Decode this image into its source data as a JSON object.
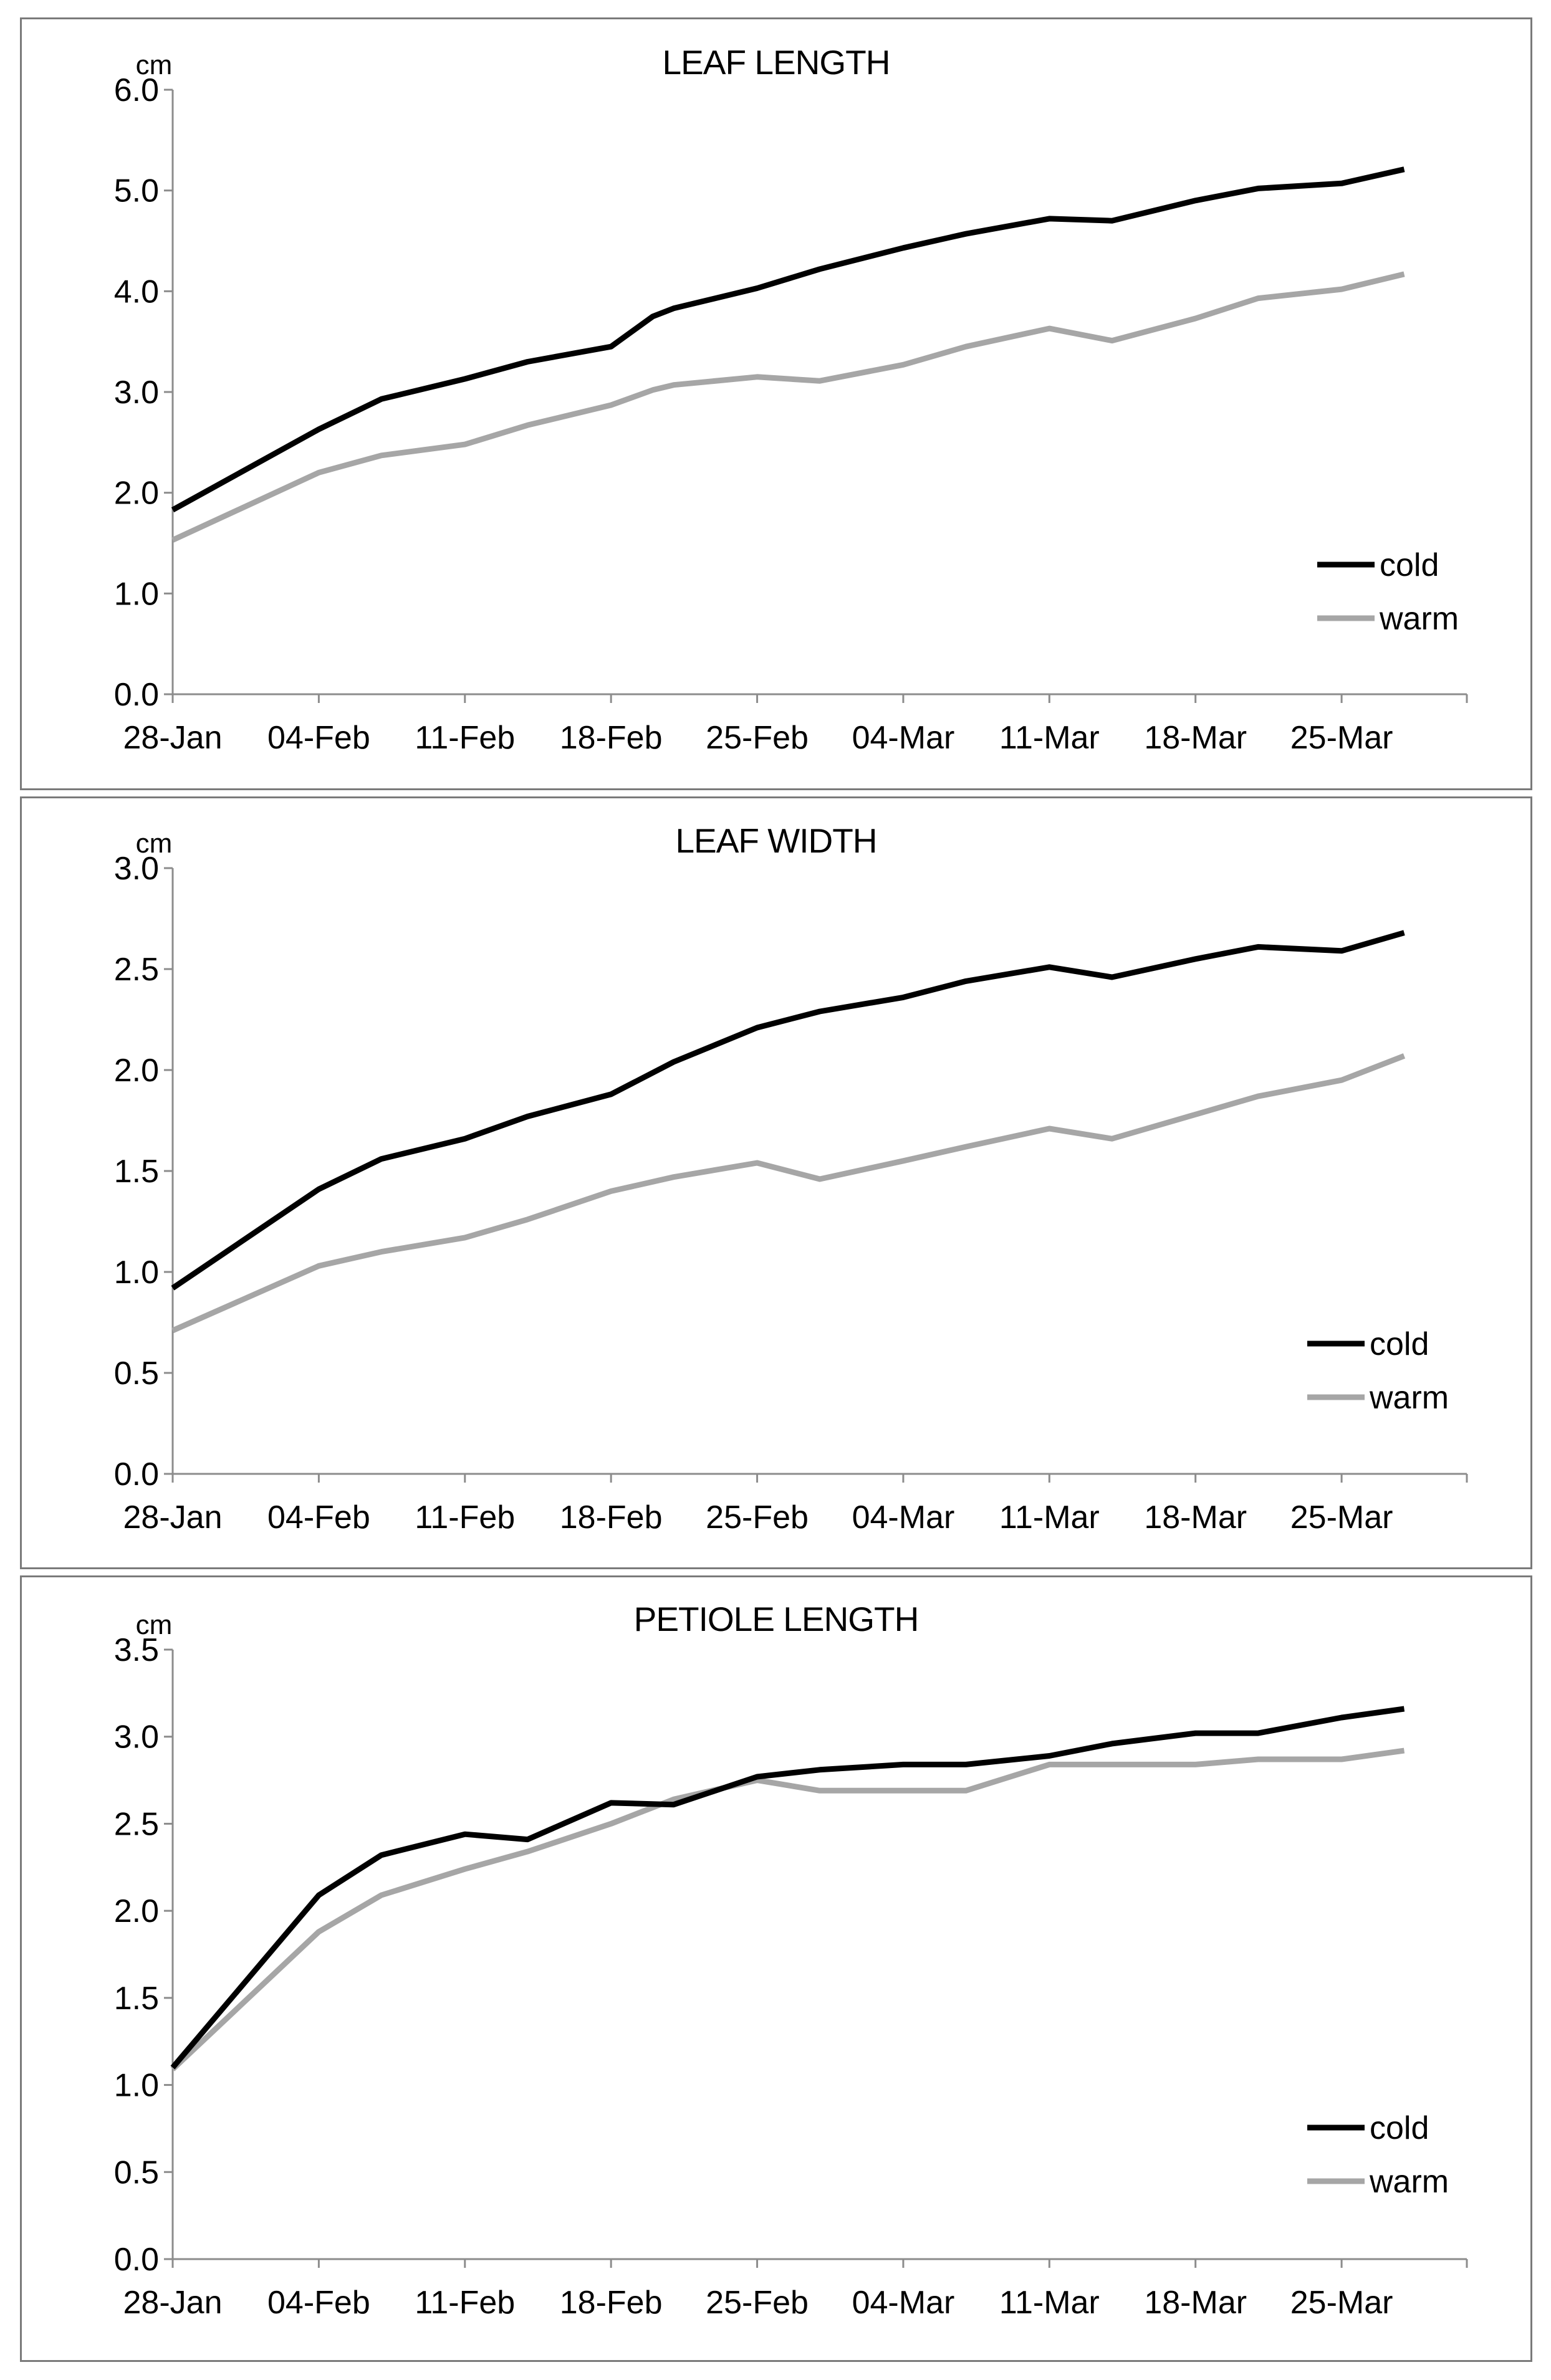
{
  "chart_data": [
    {
      "type": "line",
      "title": "LEAF LENGTH",
      "ylabel": "cm",
      "xlabel": "",
      "ylim": [
        0,
        6
      ],
      "yticks": [
        "0.0",
        "1.0",
        "2.0",
        "3.0",
        "4.0",
        "5.0",
        "6.0"
      ],
      "xticks": [
        "28-Jan",
        "04-Feb",
        "11-Feb",
        "18-Feb",
        "25-Feb",
        "04-Mar",
        "11-Mar",
        "18-Mar",
        "25-Mar"
      ],
      "x": [
        0,
        7,
        10,
        14,
        17,
        21,
        23,
        24,
        28,
        31,
        35,
        38,
        42,
        45,
        49,
        52,
        56,
        59
      ],
      "legend_position": "lower-right",
      "series": [
        {
          "name": "cold",
          "color": "#000000",
          "values": [
            1.83,
            2.63,
            2.93,
            3.13,
            3.3,
            3.45,
            3.75,
            3.83,
            4.03,
            4.22,
            4.43,
            4.57,
            4.72,
            4.7,
            4.9,
            5.02,
            5.07,
            5.21
          ]
        },
        {
          "name": "warm",
          "color": "#a6a6a6",
          "values": [
            1.53,
            2.2,
            2.37,
            2.48,
            2.67,
            2.87,
            3.02,
            3.07,
            3.15,
            3.11,
            3.27,
            3.45,
            3.63,
            3.51,
            3.73,
            3.93,
            4.02,
            4.17
          ]
        }
      ]
    },
    {
      "type": "line",
      "title": "LEAF WIDTH",
      "ylabel": "cm",
      "xlabel": "",
      "ylim": [
        0,
        3
      ],
      "yticks": [
        "0.0",
        "0.5",
        "1.0",
        "1.5",
        "2.0",
        "2.5",
        "3.0"
      ],
      "xticks": [
        "28-Jan",
        "04-Feb",
        "11-Feb",
        "18-Feb",
        "25-Feb",
        "04-Mar",
        "11-Mar",
        "18-Mar",
        "25-Mar"
      ],
      "x": [
        0,
        7,
        10,
        14,
        17,
        21,
        24,
        28,
        31,
        35,
        38,
        42,
        45,
        49,
        52,
        56,
        59
      ],
      "legend_position": "lower-right",
      "series": [
        {
          "name": "cold",
          "color": "#000000",
          "values": [
            0.92,
            1.41,
            1.56,
            1.66,
            1.77,
            1.88,
            2.04,
            2.21,
            2.29,
            2.36,
            2.44,
            2.51,
            2.46,
            2.55,
            2.61,
            2.59,
            2.68
          ]
        },
        {
          "name": "warm",
          "color": "#a6a6a6",
          "values": [
            0.71,
            1.03,
            1.1,
            1.17,
            1.26,
            1.4,
            1.47,
            1.54,
            1.46,
            1.55,
            1.62,
            1.71,
            1.66,
            1.78,
            1.87,
            1.95,
            2.07
          ]
        }
      ]
    },
    {
      "type": "line",
      "title": "PETIOLE LENGTH",
      "ylabel": "cm",
      "xlabel": "",
      "ylim": [
        0,
        3.5
      ],
      "yticks": [
        "0.0",
        "0.5",
        "1.0",
        "1.5",
        "2.0",
        "2.5",
        "3.0",
        "3.5"
      ],
      "xticks": [
        "28-Jan",
        "04-Feb",
        "11-Feb",
        "18-Feb",
        "25-Feb",
        "04-Mar",
        "11-Mar",
        "18-Mar",
        "25-Mar"
      ],
      "x": [
        0,
        7,
        10,
        14,
        17,
        21,
        24,
        28,
        31,
        35,
        38,
        42,
        45,
        49,
        52,
        56,
        59
      ],
      "legend_position": "lower-right",
      "series": [
        {
          "name": "cold",
          "color": "#000000",
          "values": [
            1.1,
            2.09,
            2.32,
            2.44,
            2.41,
            2.62,
            2.61,
            2.77,
            2.81,
            2.84,
            2.84,
            2.89,
            2.96,
            3.02,
            3.02,
            3.11,
            3.16
          ]
        },
        {
          "name": "warm",
          "color": "#a6a6a6",
          "values": [
            1.09,
            1.88,
            2.09,
            2.24,
            2.34,
            2.5,
            2.64,
            2.75,
            2.69,
            2.69,
            2.69,
            2.84,
            2.84,
            2.84,
            2.87,
            2.87,
            2.92
          ]
        }
      ]
    }
  ]
}
